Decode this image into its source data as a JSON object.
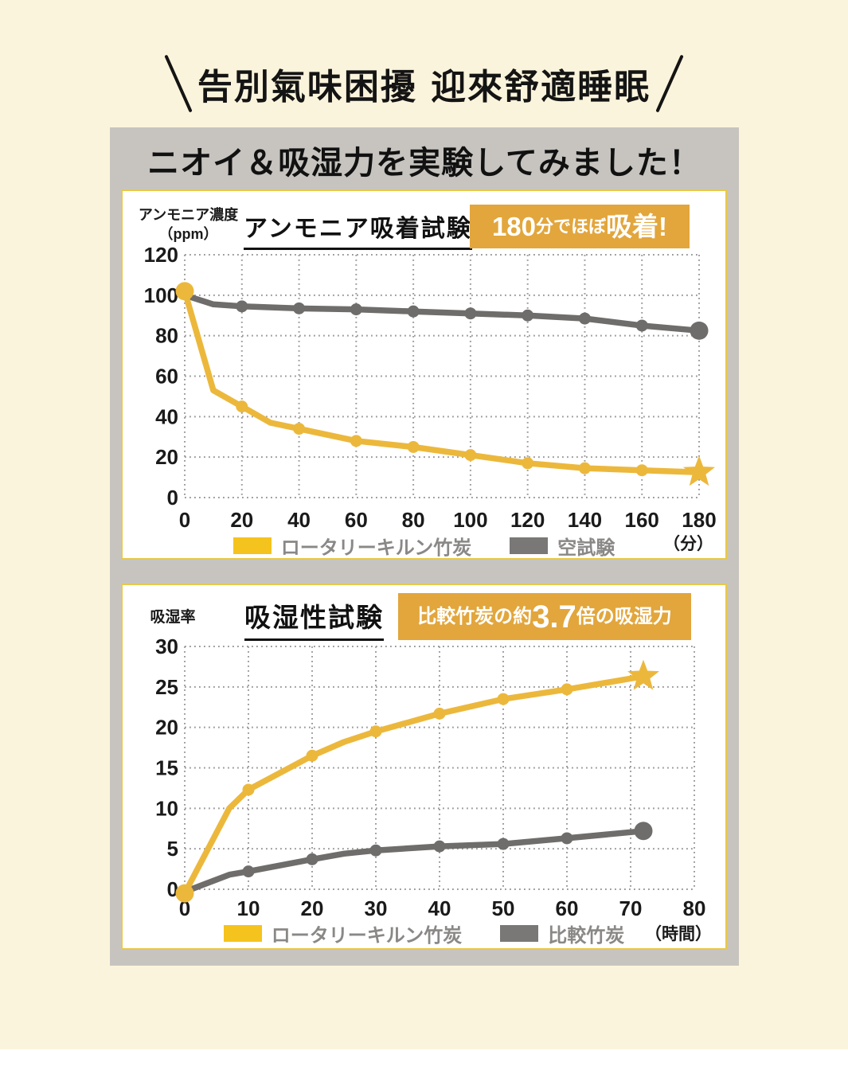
{
  "page": {
    "top_title": "告別氣味困擾 迎來舒適睡眠",
    "heading": "ニオイ＆吸湿力を実験してみました！"
  },
  "colors": {
    "background_cream": "#FBF4DC",
    "panel_gray": "#C7C4C0",
    "card_border_gold": "#E9C84A",
    "badge_orange": "#E2A63C",
    "line_yellow": "#ECB83C",
    "line_gray": "#6F6D6B",
    "legend_swatch_yellow": "#F5C31D",
    "legend_swatch_gray": "#7A7876",
    "legend_text_gray": "#8A8886",
    "grid_dot_gray": "#999999"
  },
  "chart_data": [
    {
      "type": "line",
      "title": "アンモニア吸着試験",
      "ylabel": "アンモニア濃度",
      "ylabel_unit": "（ppm）",
      "x_unit": "（分）",
      "badge_segments": [
        {
          "text": "180",
          "size": "lg"
        },
        {
          "text": "分で",
          "size": "sm"
        },
        {
          "text": "ほぼ",
          "size": "sm"
        },
        {
          "text": "吸着!",
          "size": "lg"
        }
      ],
      "xlim": [
        0,
        180
      ],
      "ylim": [
        0,
        120
      ],
      "x_ticks": [
        0,
        20,
        40,
        60,
        80,
        100,
        120,
        140,
        160,
        180
      ],
      "y_ticks": [
        0,
        20,
        40,
        60,
        80,
        100,
        120
      ],
      "grid": "dotted",
      "legend_position": "bottom",
      "series": [
        {
          "name": "ロータリーキルン竹炭",
          "color": "#ECB83C",
          "points": [
            [
              0,
              102
            ],
            [
              10,
              53
            ],
            [
              20,
              45
            ],
            [
              30,
              37
            ],
            [
              40,
              34
            ],
            [
              60,
              28
            ],
            [
              80,
              25
            ],
            [
              100,
              21
            ],
            [
              120,
              17
            ],
            [
              140,
              14.5
            ],
            [
              160,
              13.5
            ],
            [
              180,
              12.5
            ]
          ],
          "markers": [
            [
              20,
              45
            ],
            [
              40,
              34
            ],
            [
              60,
              28
            ],
            [
              80,
              25
            ],
            [
              100,
              21
            ],
            [
              120,
              17
            ],
            [
              140,
              14.5
            ],
            [
              160,
              13.5
            ]
          ],
          "start_marker": {
            "type": "big-dot",
            "at": [
              0,
              102
            ]
          },
          "end_marker": {
            "type": "star",
            "at": [
              180,
              12.5
            ]
          }
        },
        {
          "name": "空試験",
          "color": "#6F6D6B",
          "points": [
            [
              0,
              100
            ],
            [
              10,
              95.5
            ],
            [
              20,
              94.5
            ],
            [
              40,
              93.5
            ],
            [
              60,
              93
            ],
            [
              80,
              92
            ],
            [
              100,
              91
            ],
            [
              120,
              90
            ],
            [
              140,
              88.5
            ],
            [
              160,
              85
            ],
            [
              180,
              82.5
            ]
          ],
          "markers": [
            [
              20,
              94.5
            ],
            [
              40,
              93.5
            ],
            [
              60,
              93
            ],
            [
              80,
              92
            ],
            [
              100,
              91
            ],
            [
              120,
              90
            ],
            [
              140,
              88.5
            ],
            [
              160,
              85
            ]
          ],
          "end_marker": {
            "type": "big-dot",
            "at": [
              180,
              82.5
            ]
          }
        }
      ],
      "legend": [
        {
          "label": "ロータリーキルン竹炭",
          "color": "#F5C31D"
        },
        {
          "label": "空試験",
          "color": "#7A7876"
        }
      ]
    },
    {
      "type": "line",
      "title": "吸湿性試験",
      "ylabel": "吸湿率",
      "x_unit": "（時間）",
      "badge_segments": [
        {
          "text": "比較竹炭の約",
          "size": "sm"
        },
        {
          "text": "3.7",
          "size": "lg"
        },
        {
          "text": "倍の吸湿力",
          "size": "sm"
        }
      ],
      "xlim": [
        0,
        80
      ],
      "ylim": [
        0,
        30
      ],
      "x_ticks": [
        0,
        10,
        20,
        30,
        40,
        50,
        60,
        70,
        80
      ],
      "y_ticks": [
        0,
        5,
        10,
        15,
        20,
        25,
        30
      ],
      "grid": "dotted",
      "legend_position": "bottom",
      "series": [
        {
          "name": "ロータリーキルン竹炭",
          "color": "#ECB83C",
          "points": [
            [
              0,
              -0.5
            ],
            [
              7,
              10
            ],
            [
              10,
              12.3
            ],
            [
              20,
              16.5
            ],
            [
              25,
              18.2
            ],
            [
              30,
              19.5
            ],
            [
              40,
              21.7
            ],
            [
              50,
              23.5
            ],
            [
              60,
              24.7
            ],
            [
              72,
              26.3
            ]
          ],
          "markers": [
            [
              10,
              12.3
            ],
            [
              20,
              16.5
            ],
            [
              30,
              19.5
            ],
            [
              40,
              21.7
            ],
            [
              50,
              23.5
            ],
            [
              60,
              24.7
            ]
          ],
          "start_marker": {
            "type": "big-dot",
            "at": [
              0,
              -0.5
            ]
          },
          "end_marker": {
            "type": "star",
            "at": [
              72,
              26.3
            ]
          }
        },
        {
          "name": "比較竹炭",
          "color": "#6F6D6B",
          "points": [
            [
              0,
              -0.3
            ],
            [
              7,
              1.8
            ],
            [
              10,
              2.2
            ],
            [
              20,
              3.7
            ],
            [
              25,
              4.4
            ],
            [
              30,
              4.8
            ],
            [
              40,
              5.3
            ],
            [
              50,
              5.6
            ],
            [
              60,
              6.3
            ],
            [
              72,
              7.2
            ]
          ],
          "markers": [
            [
              10,
              2.2
            ],
            [
              20,
              3.7
            ],
            [
              30,
              4.8
            ],
            [
              40,
              5.3
            ],
            [
              50,
              5.6
            ],
            [
              60,
              6.3
            ]
          ],
          "end_marker": {
            "type": "big-dot",
            "at": [
              72,
              7.2
            ]
          }
        }
      ],
      "legend": [
        {
          "label": "ロータリーキルン竹炭",
          "color": "#F5C31D"
        },
        {
          "label": "比較竹炭",
          "color": "#7A7876"
        }
      ]
    }
  ]
}
